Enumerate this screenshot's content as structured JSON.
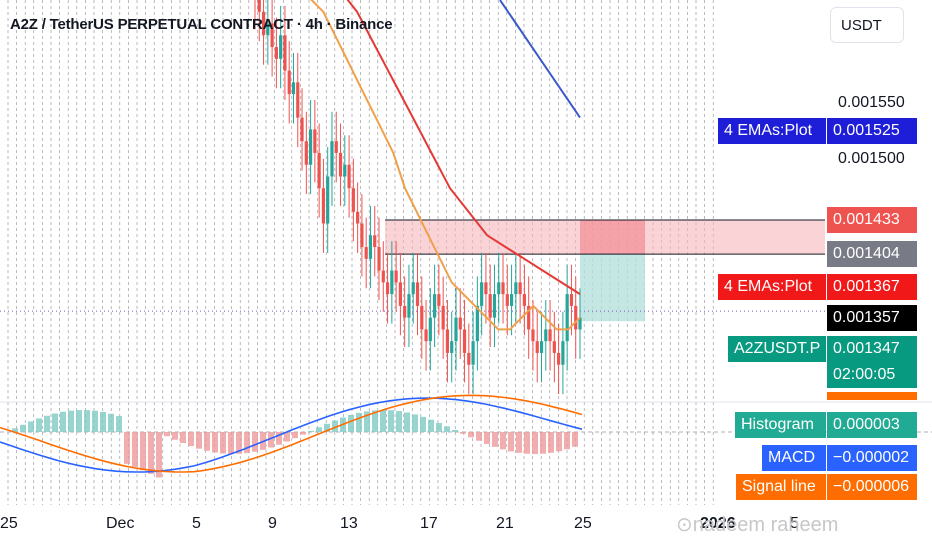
{
  "header": {
    "title": "A2Z / TetherUS PERPETUAL CONTRACT · 4h · Binance",
    "currency": "USDT"
  },
  "watermark": "nadeem raheem",
  "colors": {
    "up": "#26a69a",
    "down": "#ef5350",
    "ema_orange": "#f0a04b",
    "ema_red": "#e53935",
    "ema_blue": "#3c5ac8",
    "macd_blue": "#2962ff",
    "signal_orange": "#ff6d00"
  },
  "price_labels": {
    "p1550": "0.001550",
    "p1500": "0.001500",
    "ema_blue_name": "4 EMAs:Plot",
    "ema_blue_value": "0.001525",
    "red_zone_value": "0.001433",
    "gray_value": "0.001404",
    "ema_red_name": "4 EMAs:Plot",
    "ema_red_value": "0.001367",
    "black_value": "0.001357",
    "symbol_name": "A2ZUSDT.P",
    "symbol_value": "0.001347",
    "countdown": "02:00:05",
    "histogram_name": "Histogram",
    "histogram_value": "0.000003",
    "macd_name": "MACD",
    "macd_value": "−0.000002",
    "signal_name": "Signal line",
    "signal_value": "−0.000006"
  },
  "chart_data": {
    "type": "candlestick",
    "title": "A2Z / TetherUS PERPETUAL CONTRACT · 4h · Binance",
    "x_ticks": [
      "25",
      "Dec",
      "5",
      "9",
      "13",
      "17",
      "21",
      "25",
      "2026",
      "5"
    ],
    "y_ticks": [
      0.0015,
      0.00155
    ],
    "ylim": [
      0.00128,
      0.00162
    ],
    "current_price": 0.001347,
    "series": {
      "closes": [
        0.00162,
        0.00161,
        0.00159,
        0.0016,
        0.00158,
        0.00157,
        0.00159,
        0.00156,
        0.00154,
        0.00155,
        0.00152,
        0.0015,
        0.00148,
        0.00151,
        0.00149,
        0.00146,
        0.00143,
        0.00147,
        0.0015,
        0.00149,
        0.00147,
        0.00148,
        0.00146,
        0.00144,
        0.00143,
        0.00141,
        0.0014,
        0.00142,
        0.00141,
        0.00139,
        0.00138,
        0.00137,
        0.00139,
        0.00138,
        0.00136,
        0.00135,
        0.00137,
        0.00138,
        0.00136,
        0.00134,
        0.00133,
        0.00135,
        0.00137,
        0.00136,
        0.00134,
        0.00132,
        0.00133,
        0.00135,
        0.00134,
        0.00132,
        0.00131,
        0.00133,
        0.00136,
        0.00138,
        0.00137,
        0.00135,
        0.00137,
        0.00138,
        0.00137,
        0.00136,
        0.00137,
        0.00138,
        0.00137,
        0.00136,
        0.00134,
        0.00133,
        0.00132,
        0.00133,
        0.00134,
        0.00133,
        0.00132,
        0.00131,
        0.00133,
        0.00137,
        0.00136,
        0.00134,
        0.00135
      ],
      "ema_orange": [
        0.00163,
        0.00162,
        0.00161,
        0.00159,
        0.00157,
        0.00155,
        0.00153,
        0.00151,
        0.00149,
        0.00146,
        0.00144,
        0.00142,
        0.0014,
        0.00138,
        0.00137,
        0.00136,
        0.00135,
        0.00134,
        0.00134,
        0.00135,
        0.00136,
        0.00135,
        0.00134,
        0.00134,
        0.00135
      ],
      "ema_red": [
        0.00165,
        0.00163,
        0.00161,
        0.00158,
        0.00155,
        0.00152,
        0.00149,
        0.00146,
        0.00144,
        0.00142,
        0.00141,
        0.0014,
        0.00139,
        0.00138,
        0.00137
      ],
      "ema_blue": [
        0.00162,
        0.0016,
        0.00158,
        0.00156,
        0.00154,
        0.00152
      ],
      "zones": [
        {
          "name": "red-zone",
          "top": 0.001433,
          "bottom": 0.001404
        },
        {
          "name": "teal-zone",
          "top": 0.001404,
          "bottom": 0.001347
        }
      ]
    },
    "macd": {
      "histogram": 3e-06,
      "macd": -2e-06,
      "signal": -6e-06
    }
  }
}
